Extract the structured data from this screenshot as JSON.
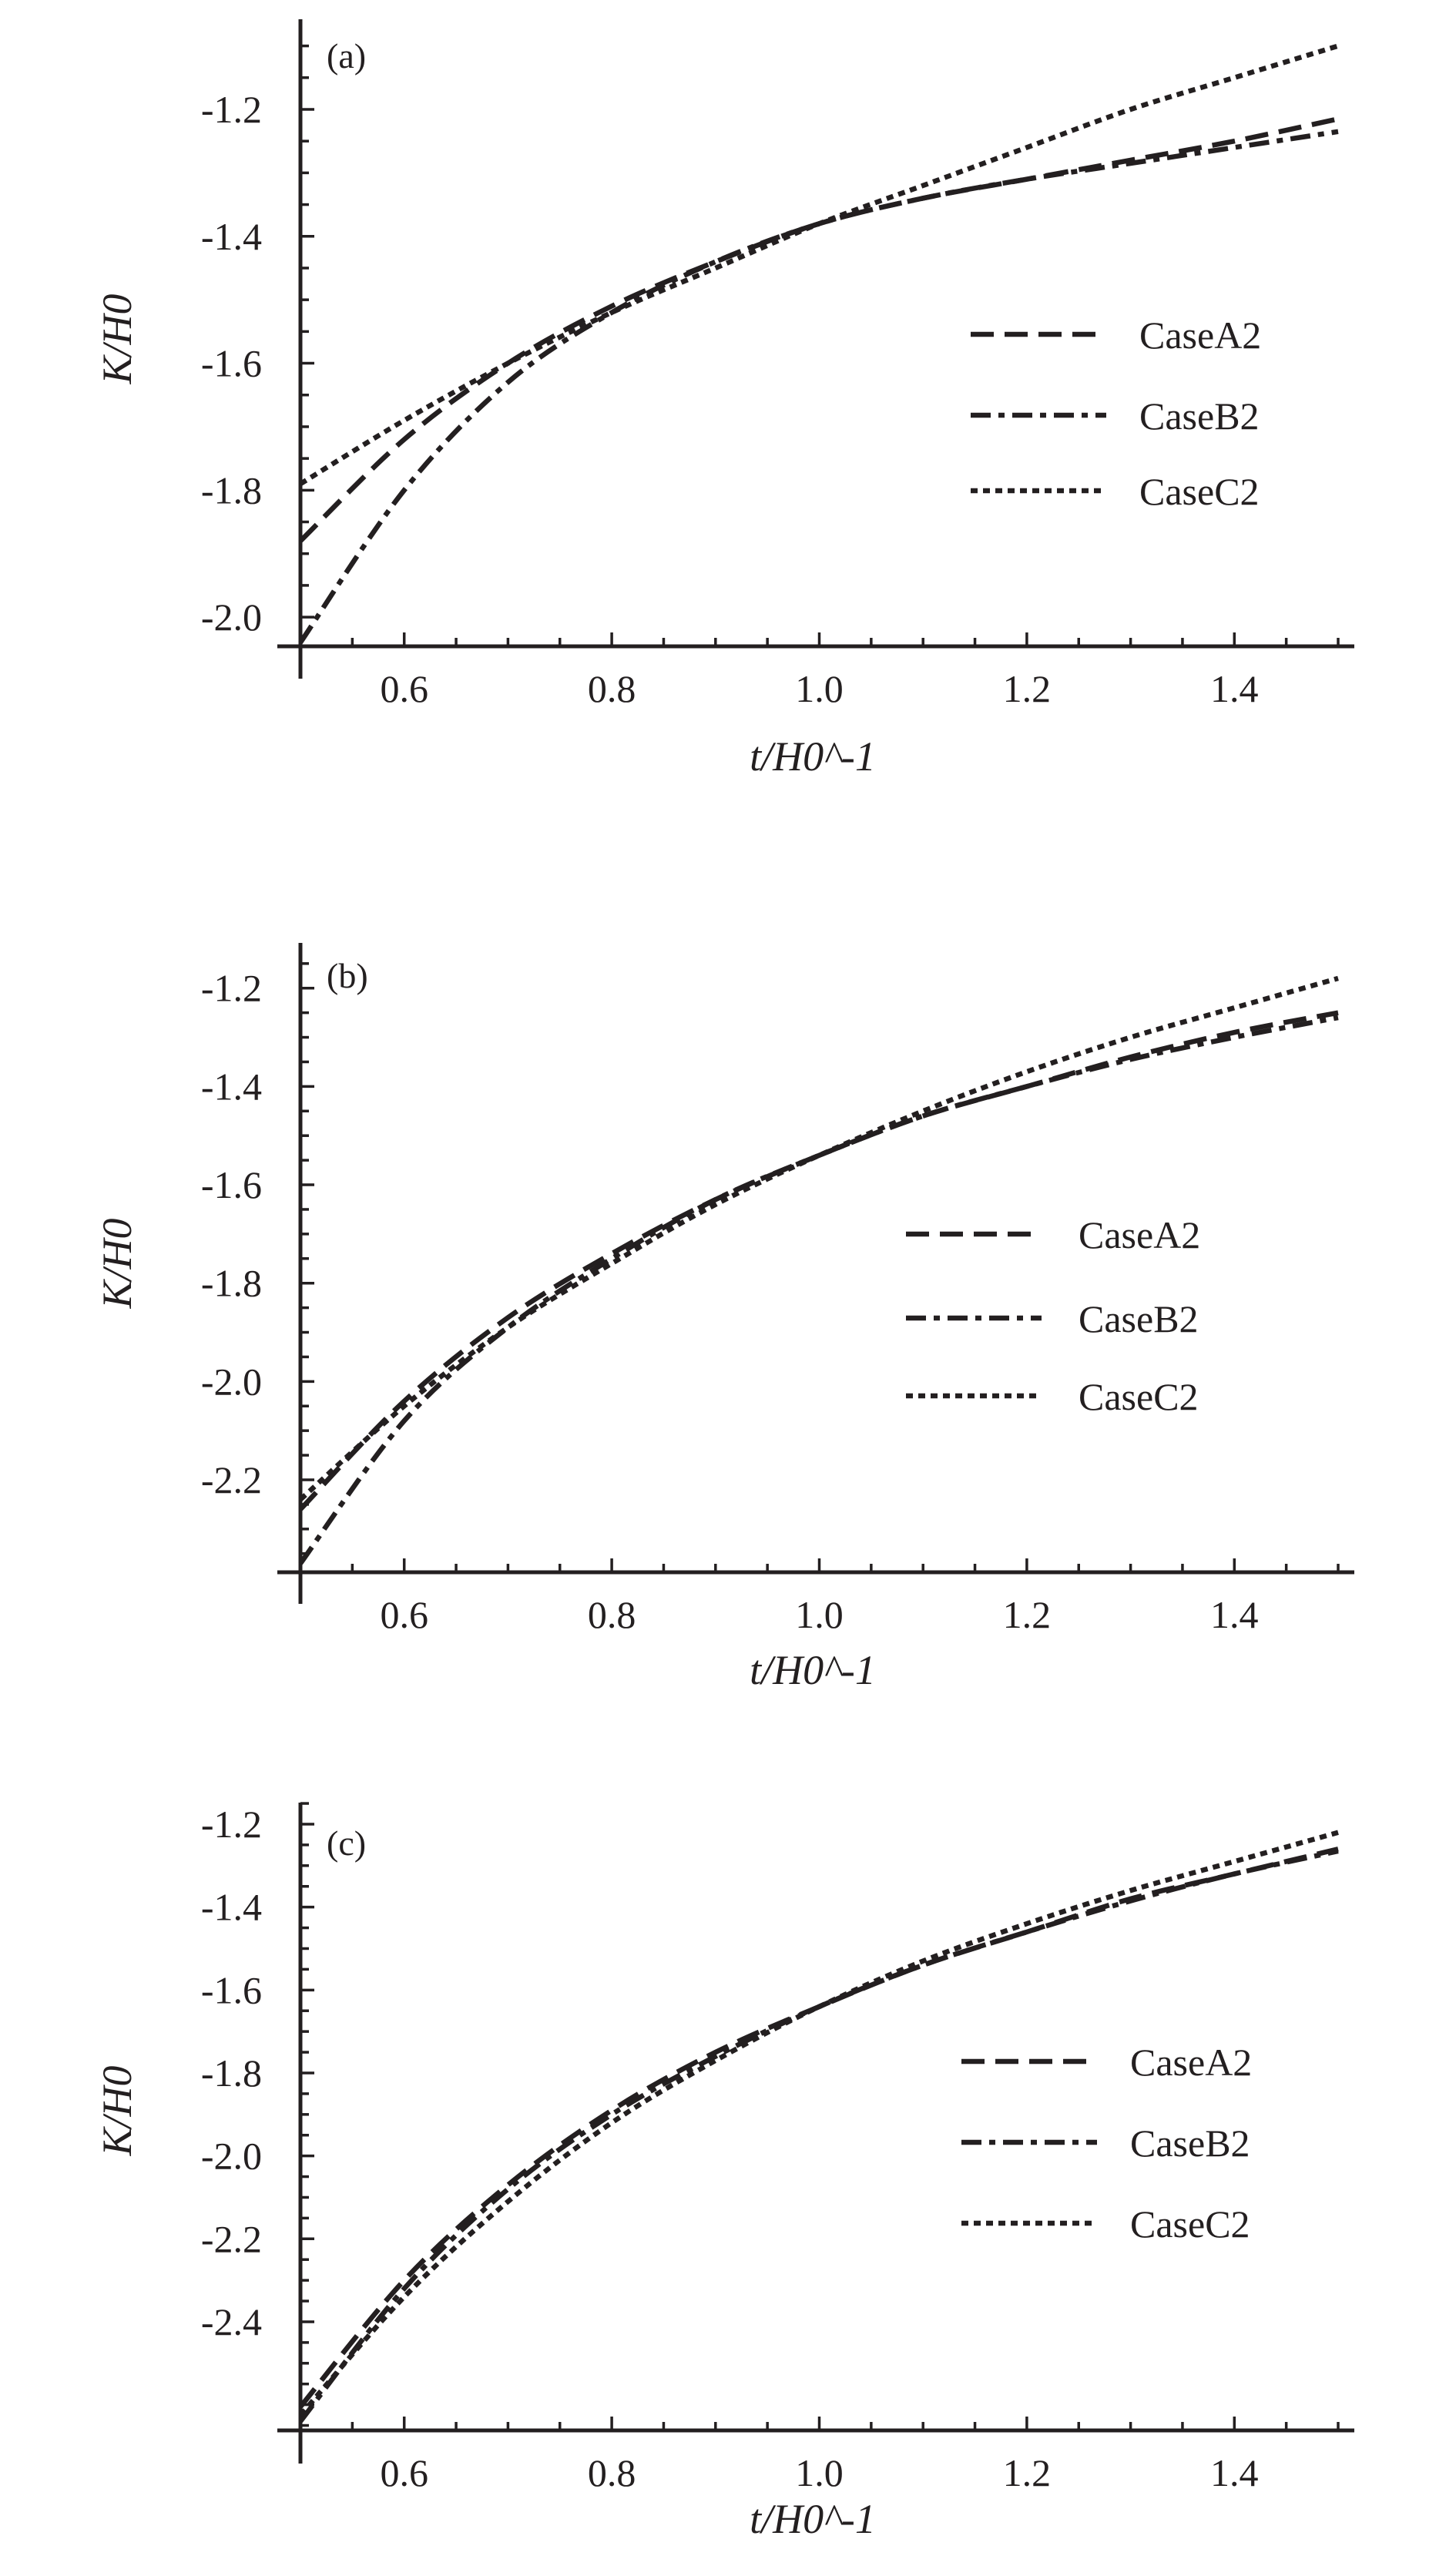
{
  "chart_data": [
    {
      "type": "line",
      "panel_label": "(a)",
      "xlabel": "t/H0^-1",
      "ylabel": "K/H0",
      "xlim": [
        0.5,
        1.5
      ],
      "ylim": [
        -2.046,
        -1.058
      ],
      "xticks": [
        "0.6",
        "0.8",
        "1.0",
        "1.2",
        "1.4"
      ],
      "yticks": [
        "-1.2",
        "-1.4",
        "-1.6",
        "-1.8",
        "-2.0"
      ],
      "grid": false,
      "legend_position": "right-middle",
      "x": [
        0.5,
        0.6,
        0.7,
        0.8,
        0.9,
        1.0,
        1.1,
        1.2,
        1.3,
        1.4,
        1.5
      ],
      "series": [
        {
          "name": "CaseA2",
          "style": "dashed",
          "values": [
            -1.88,
            -1.72,
            -1.6,
            -1.51,
            -1.44,
            -1.38,
            -1.34,
            -1.31,
            -1.28,
            -1.25,
            -1.215
          ]
        },
        {
          "name": "CaseB2",
          "style": "dash-dot",
          "values": [
            -2.04,
            -1.8,
            -1.63,
            -1.52,
            -1.44,
            -1.38,
            -1.34,
            -1.31,
            -1.285,
            -1.26,
            -1.235
          ]
        },
        {
          "name": "CaseC2",
          "style": "dotted",
          "values": [
            -1.79,
            -1.69,
            -1.6,
            -1.52,
            -1.45,
            -1.38,
            -1.32,
            -1.26,
            -1.2,
            -1.15,
            -1.1
          ]
        }
      ]
    },
    {
      "type": "line",
      "panel_label": "(b)",
      "xlabel": "t/H0^-1",
      "ylabel": "K/H0",
      "xlim": [
        0.5,
        1.5
      ],
      "ylim": [
        -2.388,
        -1.108
      ],
      "xticks": [
        "0.6",
        "0.8",
        "1.0",
        "1.2",
        "1.4"
      ],
      "yticks": [
        "-1.2",
        "-1.4",
        "-1.6",
        "-1.8",
        "-2.0",
        "-2.2"
      ],
      "grid": false,
      "legend_position": "right-middle",
      "x": [
        0.5,
        0.6,
        0.7,
        0.8,
        0.9,
        1.0,
        1.1,
        1.2,
        1.3,
        1.4,
        1.5
      ],
      "series": [
        {
          "name": "CaseA2",
          "style": "dashed",
          "values": [
            -2.26,
            -2.04,
            -1.87,
            -1.74,
            -1.63,
            -1.54,
            -1.46,
            -1.4,
            -1.34,
            -1.29,
            -1.25
          ]
        },
        {
          "name": "CaseB2",
          "style": "dash-dot",
          "values": [
            -2.37,
            -2.08,
            -1.89,
            -1.75,
            -1.63,
            -1.54,
            -1.46,
            -1.4,
            -1.345,
            -1.3,
            -1.26
          ]
        },
        {
          "name": "CaseC2",
          "style": "dotted",
          "values": [
            -2.24,
            -2.05,
            -1.89,
            -1.76,
            -1.64,
            -1.54,
            -1.45,
            -1.37,
            -1.3,
            -1.24,
            -1.18
          ]
        }
      ]
    },
    {
      "type": "line",
      "panel_label": "(c)",
      "xlabel": "t/H0^-1",
      "ylabel": "K/H0",
      "xlim": [
        0.5,
        1.5
      ],
      "ylim": [
        -2.662,
        -1.148
      ],
      "xticks": [
        "0.6",
        "0.8",
        "1.0",
        "1.2",
        "1.4"
      ],
      "yticks": [
        "-1.2",
        "-1.4",
        "-1.6",
        "-1.8",
        "-2.0",
        "-2.2",
        "-2.4"
      ],
      "grid": false,
      "legend_position": "right-middle",
      "x": [
        0.5,
        0.6,
        0.7,
        0.8,
        0.9,
        1.0,
        1.1,
        1.2,
        1.3,
        1.4,
        1.5
      ],
      "series": [
        {
          "name": "CaseA2",
          "style": "dashed",
          "values": [
            -2.605,
            -2.3,
            -2.07,
            -1.89,
            -1.75,
            -1.64,
            -1.54,
            -1.46,
            -1.38,
            -1.32,
            -1.26
          ]
        },
        {
          "name": "CaseB2",
          "style": "dash-dot",
          "values": [
            -2.64,
            -2.32,
            -2.08,
            -1.9,
            -1.76,
            -1.64,
            -1.54,
            -1.46,
            -1.385,
            -1.32,
            -1.265
          ]
        },
        {
          "name": "CaseC2",
          "style": "dotted",
          "values": [
            -2.625,
            -2.34,
            -2.11,
            -1.92,
            -1.77,
            -1.64,
            -1.53,
            -1.44,
            -1.36,
            -1.29,
            -1.22
          ]
        }
      ]
    }
  ],
  "colors": {
    "ink": "#231f20"
  }
}
